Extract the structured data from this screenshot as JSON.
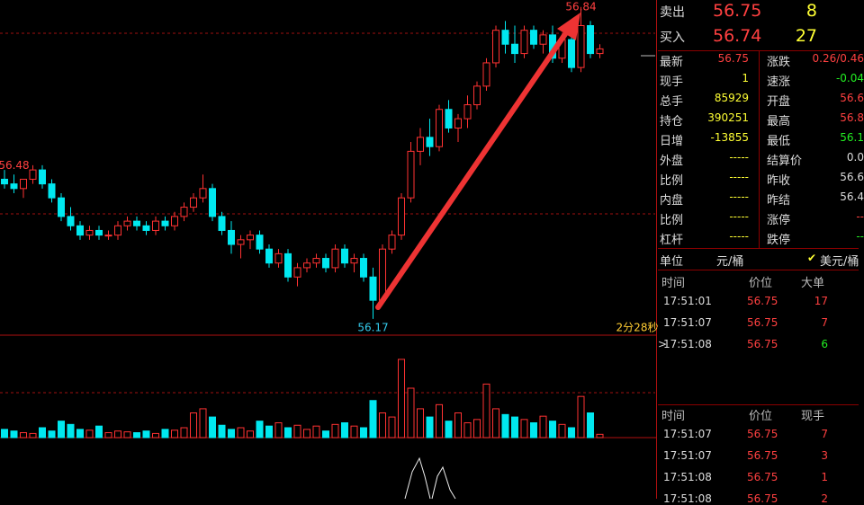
{
  "chart": {
    "type": "candlestick",
    "ylim": [
      56.137,
      56.855
    ],
    "volume_lim": [
      0,
      120
    ],
    "candles": [
      [
        56.47,
        56.49,
        56.45,
        56.46
      ],
      [
        56.46,
        56.48,
        56.44,
        56.45
      ],
      [
        56.45,
        56.47,
        56.43,
        56.47
      ],
      [
        56.47,
        56.5,
        56.46,
        56.49
      ],
      [
        56.49,
        56.5,
        56.45,
        56.46
      ],
      [
        56.46,
        56.47,
        56.42,
        56.43
      ],
      [
        56.43,
        56.44,
        56.38,
        56.39
      ],
      [
        56.39,
        56.41,
        56.36,
        56.37
      ],
      [
        56.37,
        56.38,
        56.34,
        56.35
      ],
      [
        56.35,
        56.37,
        56.34,
        56.36
      ],
      [
        56.36,
        56.37,
        56.34,
        56.35
      ],
      [
        56.35,
        56.36,
        56.34,
        56.35
      ],
      [
        56.35,
        56.38,
        56.34,
        56.37
      ],
      [
        56.37,
        56.39,
        56.36,
        56.38
      ],
      [
        56.38,
        56.39,
        56.36,
        56.37
      ],
      [
        56.37,
        56.38,
        56.35,
        56.36
      ],
      [
        56.36,
        56.39,
        56.35,
        56.38
      ],
      [
        56.38,
        56.39,
        56.36,
        56.37
      ],
      [
        56.37,
        56.4,
        56.36,
        56.39
      ],
      [
        56.39,
        56.42,
        56.38,
        56.41
      ],
      [
        56.41,
        56.44,
        56.4,
        56.43
      ],
      [
        56.43,
        56.48,
        56.42,
        56.45
      ],
      [
        56.45,
        56.46,
        56.38,
        56.39
      ],
      [
        56.39,
        56.4,
        56.35,
        56.36
      ],
      [
        56.36,
        56.38,
        56.31,
        56.33
      ],
      [
        56.33,
        56.35,
        56.3,
        56.34
      ],
      [
        56.34,
        56.36,
        56.32,
        56.35
      ],
      [
        56.35,
        56.36,
        56.31,
        56.32
      ],
      [
        56.32,
        56.33,
        56.28,
        56.29
      ],
      [
        56.29,
        56.32,
        56.28,
        56.31
      ],
      [
        56.31,
        56.32,
        56.25,
        56.26
      ],
      [
        56.26,
        56.29,
        56.24,
        56.28
      ],
      [
        56.28,
        56.3,
        56.27,
        56.29
      ],
      [
        56.29,
        56.31,
        56.28,
        56.3
      ],
      [
        56.3,
        56.31,
        56.27,
        56.28
      ],
      [
        56.28,
        56.33,
        56.27,
        56.32
      ],
      [
        56.32,
        56.33,
        56.28,
        56.29
      ],
      [
        56.29,
        56.31,
        56.27,
        56.3
      ],
      [
        56.3,
        56.31,
        56.25,
        56.26
      ],
      [
        56.26,
        56.28,
        56.17,
        56.21
      ],
      [
        56.21,
        56.33,
        56.2,
        56.32
      ],
      [
        56.32,
        56.36,
        56.31,
        56.35
      ],
      [
        56.35,
        56.44,
        56.34,
        56.43
      ],
      [
        56.43,
        56.55,
        56.42,
        56.53
      ],
      [
        56.53,
        56.58,
        56.5,
        56.56
      ],
      [
        56.56,
        56.6,
        56.52,
        56.54
      ],
      [
        56.54,
        56.63,
        56.53,
        56.62
      ],
      [
        56.62,
        56.64,
        56.57,
        56.58
      ],
      [
        56.58,
        56.61,
        56.55,
        56.6
      ],
      [
        56.6,
        56.65,
        56.58,
        56.63
      ],
      [
        56.63,
        56.68,
        56.62,
        56.67
      ],
      [
        56.67,
        56.73,
        56.66,
        56.72
      ],
      [
        56.72,
        56.8,
        56.71,
        56.79
      ],
      [
        56.79,
        56.81,
        56.74,
        56.76
      ],
      [
        56.76,
        56.8,
        56.72,
        56.74
      ],
      [
        56.74,
        56.8,
        56.73,
        56.79
      ],
      [
        56.79,
        56.8,
        56.75,
        56.76
      ],
      [
        56.76,
        56.79,
        56.74,
        56.78
      ],
      [
        56.78,
        56.8,
        56.72,
        56.73
      ],
      [
        56.73,
        56.78,
        56.72,
        56.77
      ],
      [
        56.77,
        56.78,
        56.7,
        56.71
      ],
      [
        56.71,
        56.84,
        56.7,
        56.8
      ],
      [
        56.8,
        56.81,
        56.73,
        56.74
      ],
      [
        56.74,
        56.76,
        56.73,
        56.75
      ]
    ],
    "volume": [
      10,
      8,
      6,
      5,
      12,
      8,
      20,
      16,
      10,
      9,
      14,
      6,
      8,
      7,
      6,
      8,
      5,
      10,
      9,
      12,
      30,
      35,
      25,
      15,
      10,
      12,
      8,
      20,
      14,
      18,
      12,
      15,
      10,
      14,
      8,
      16,
      18,
      14,
      12,
      45,
      30,
      25,
      95,
      60,
      35,
      25,
      40,
      20,
      30,
      18,
      22,
      65,
      35,
      28,
      25,
      22,
      18,
      26,
      20,
      16,
      12,
      50,
      30,
      4
    ],
    "high_label": 56.84,
    "mid_label": 56.48,
    "low_label": 56.17,
    "timer": "2分28秒"
  },
  "quote": {
    "sell": {
      "label": "卖出",
      "price": 56.75,
      "qty": 8
    },
    "buy": {
      "label": "买入",
      "price": 56.74,
      "qty": 27
    }
  },
  "stats": [
    [
      "最新",
      "56.75",
      "涨跌",
      "0.26/0.46"
    ],
    [
      "现手",
      "1",
      "速涨",
      "-0.04"
    ],
    [
      "总手",
      "85929",
      "开盘",
      "56.6"
    ],
    [
      "持仓",
      "390251",
      "最高",
      "56.8"
    ],
    [
      "日增",
      "-13855",
      "最低",
      "56.1"
    ],
    [
      "外盘",
      "-----",
      "结算价",
      "0.0"
    ],
    [
      "比例",
      "-----",
      "昨收",
      "56.6"
    ],
    [
      "内盘",
      "-----",
      "昨结",
      "56.4"
    ],
    [
      "比例",
      "-----",
      "涨停",
      "--"
    ],
    [
      "杠杆",
      "-----",
      "跌停",
      "--"
    ]
  ],
  "unit": {
    "label": "单位",
    "value": "元/桶",
    "option": "美元/桶"
  },
  "trades_big": {
    "headers": [
      "时间",
      "价位",
      "大单"
    ],
    "cursor": ">",
    "rows": [
      [
        "17:51:01",
        "56.75",
        "17"
      ],
      [
        "17:51:07",
        "56.75",
        "7"
      ],
      [
        "17:51:08",
        "56.75",
        "6"
      ]
    ]
  },
  "trades": {
    "headers": [
      "时间",
      "价位",
      "现手"
    ],
    "rows": [
      [
        "17:51:07",
        "56.75",
        "7"
      ],
      [
        "17:51:07",
        "56.75",
        "3"
      ],
      [
        "17:51:08",
        "56.75",
        "1"
      ],
      [
        "17:51:08",
        "56.75",
        "2"
      ]
    ]
  }
}
